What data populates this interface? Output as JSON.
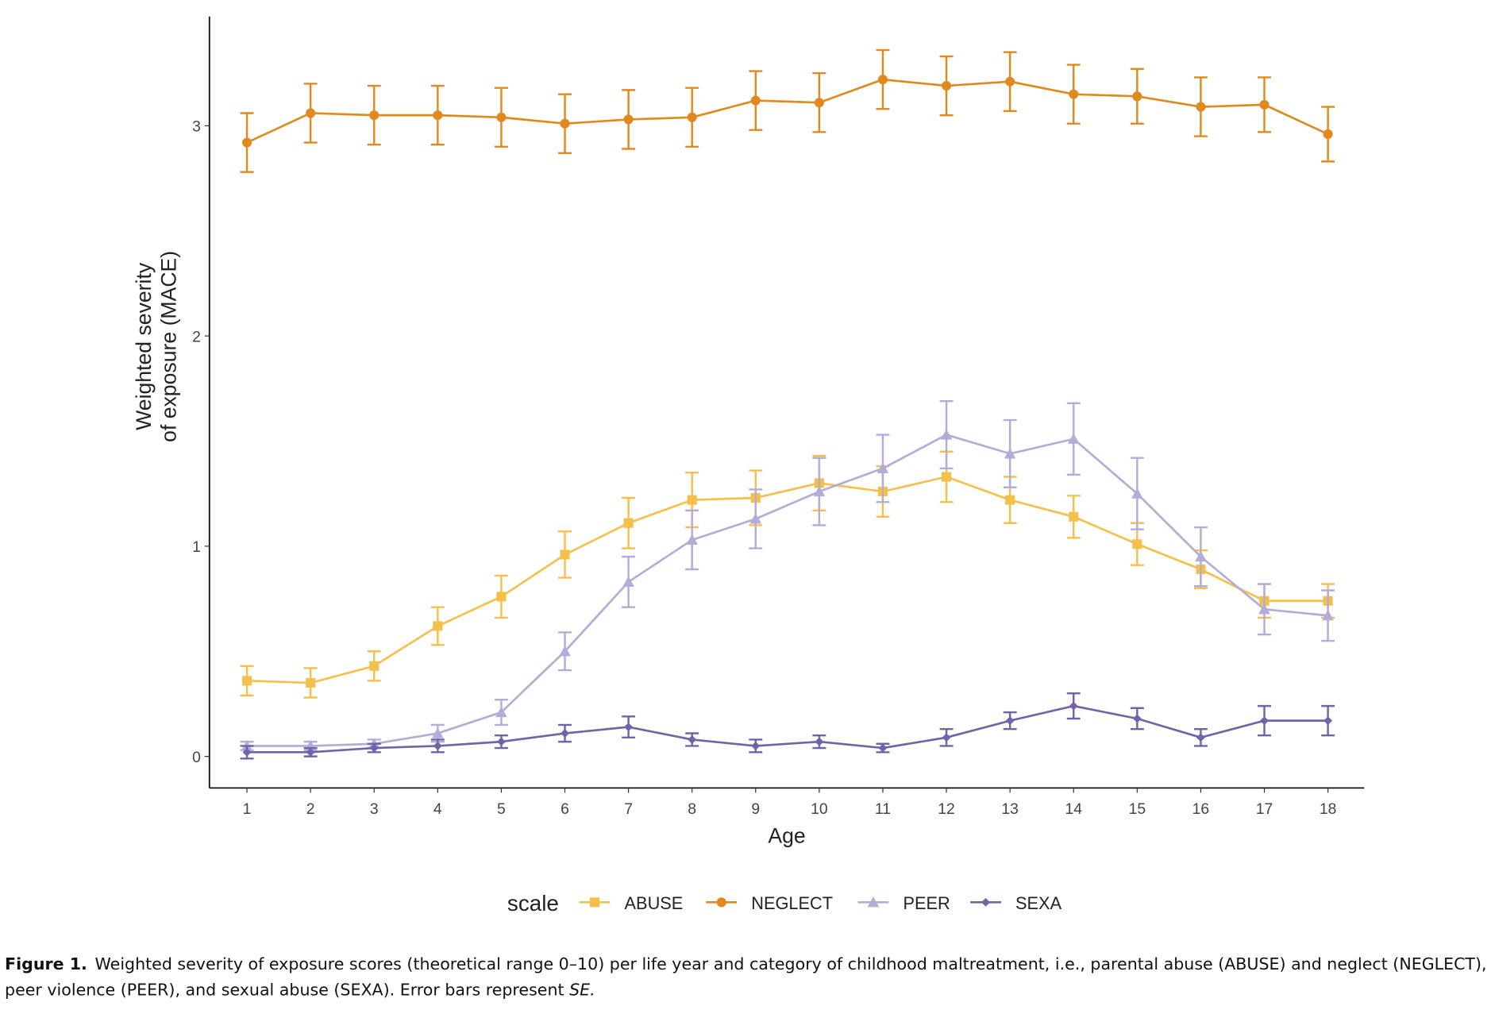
{
  "chart_data": {
    "type": "line",
    "x_label": "Age",
    "y_label": [
      "Weighted severity",
      "of exposure (MACE)"
    ],
    "x": [
      1,
      2,
      3,
      4,
      5,
      6,
      7,
      8,
      9,
      10,
      11,
      12,
      13,
      14,
      15,
      16,
      17,
      18
    ],
    "xlim": [
      0.41,
      18.57
    ],
    "xticks": [
      1,
      2,
      3,
      4,
      5,
      6,
      7,
      8,
      9,
      10,
      11,
      12,
      13,
      14,
      15,
      16,
      17,
      18
    ],
    "ylim": [
      -0.15,
      3.52
    ],
    "yticks": [
      0,
      1,
      2,
      3
    ],
    "grid": false,
    "legend_title": "scale",
    "legend_position": "bottom",
    "series": [
      {
        "name": "ABUSE",
        "color": "#f5c04a",
        "marker": "square",
        "values": [
          0.36,
          0.35,
          0.43,
          0.62,
          0.76,
          0.96,
          1.11,
          1.22,
          1.23,
          1.3,
          1.26,
          1.33,
          1.22,
          1.14,
          1.01,
          0.89,
          0.74,
          0.74
        ],
        "errors": [
          0.07,
          0.07,
          0.07,
          0.09,
          0.1,
          0.11,
          0.12,
          0.13,
          0.13,
          0.13,
          0.12,
          0.12,
          0.11,
          0.1,
          0.1,
          0.09,
          0.08,
          0.08
        ]
      },
      {
        "name": "NEGLECT",
        "color": "#e08a1e",
        "marker": "circle",
        "values": [
          2.92,
          3.06,
          3.05,
          3.05,
          3.04,
          3.01,
          3.03,
          3.04,
          3.12,
          3.11,
          3.22,
          3.19,
          3.21,
          3.15,
          3.14,
          3.09,
          3.1,
          2.96
        ],
        "errors": [
          0.14,
          0.14,
          0.14,
          0.14,
          0.14,
          0.14,
          0.14,
          0.14,
          0.14,
          0.14,
          0.14,
          0.14,
          0.14,
          0.14,
          0.13,
          0.14,
          0.13,
          0.13
        ]
      },
      {
        "name": "PEER",
        "color": "#b3acd9",
        "marker": "triangle",
        "values": [
          0.05,
          0.05,
          0.06,
          0.11,
          0.21,
          0.5,
          0.83,
          1.03,
          1.13,
          1.26,
          1.37,
          1.53,
          1.44,
          1.51,
          1.25,
          0.95,
          0.7,
          0.67
        ],
        "errors": [
          0.02,
          0.02,
          0.02,
          0.04,
          0.06,
          0.09,
          0.12,
          0.14,
          0.14,
          0.16,
          0.16,
          0.16,
          0.16,
          0.17,
          0.17,
          0.14,
          0.12,
          0.12
        ]
      },
      {
        "name": "SEXA",
        "color": "#7263a8",
        "marker": "diamond",
        "values": [
          0.02,
          0.02,
          0.04,
          0.05,
          0.07,
          0.11,
          0.14,
          0.08,
          0.05,
          0.07,
          0.04,
          0.09,
          0.17,
          0.24,
          0.18,
          0.09,
          0.17,
          0.17
        ],
        "errors": [
          0.03,
          0.02,
          0.02,
          0.03,
          0.03,
          0.04,
          0.05,
          0.03,
          0.03,
          0.03,
          0.02,
          0.04,
          0.04,
          0.06,
          0.05,
          0.04,
          0.07,
          0.07
        ]
      }
    ],
    "caption": {
      "label": "Figure 1.",
      "lines": [
        "Weighted severity of exposure scores (theoretical range 0–10) per life year and category of childhood maltreatment, i.e., parental abuse (ABUSE) and neglect (NEGLECT),",
        "peer violence (PEER), and sexual abuse (SEXA). Error bars represent "
      ],
      "emphasis": "SE."
    }
  }
}
